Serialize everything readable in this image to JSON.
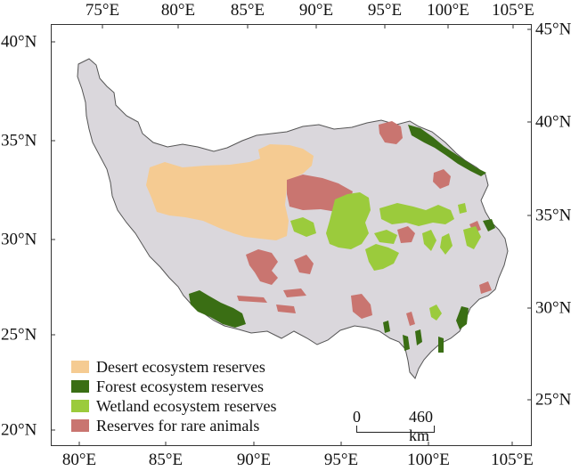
{
  "axes": {
    "top_lon": [
      "75°E",
      "80°E",
      "85°E",
      "90°E",
      "95°E",
      "100°E",
      "105°E"
    ],
    "bottom_lon": [
      "80°E",
      "85°E",
      "90°E",
      "95°E",
      "100°E",
      "105°E"
    ],
    "left_lat": [
      "40°N",
      "35°N",
      "30°N",
      "25°N",
      "20°N"
    ],
    "right_lat": [
      "45°N",
      "40°N",
      "35°N",
      "30°N",
      "25°N"
    ]
  },
  "legend": {
    "items": [
      {
        "label": "Desert ecosystem reserves",
        "color": "#f5cb92"
      },
      {
        "label": "Forest ecosystem reserves",
        "color": "#3a6e14"
      },
      {
        "label": "Wetland ecosystem reserves",
        "color": "#9bcb3c"
      },
      {
        "label": "Reserves for rare animals",
        "color": "#c97570"
      }
    ]
  },
  "scale_bar": {
    "zero": "0",
    "max": "460 km"
  },
  "colors": {
    "plateau": "#dad7dc",
    "outline": "#555555"
  }
}
